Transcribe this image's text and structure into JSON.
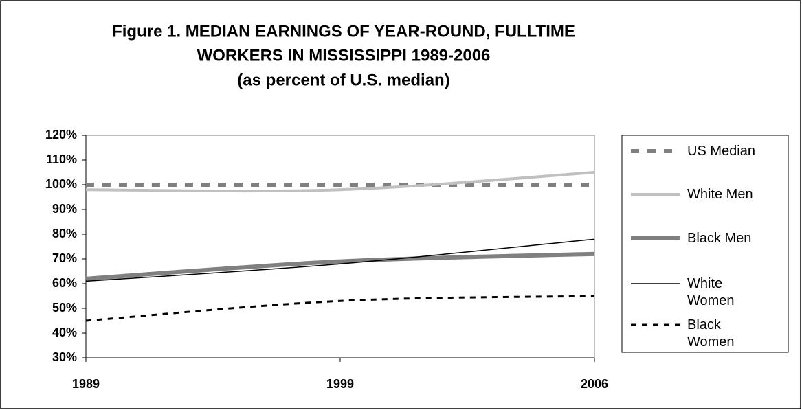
{
  "chart_data": {
    "type": "line",
    "title": [
      "Figure 1. MEDIAN EARNINGS OF YEAR-ROUND, FULLTIME",
      "WORKERS IN MISSISSIPPI 1989-2006"
    ],
    "subtitle": "(as percent of U.S. median)",
    "categories": [
      "1989",
      "1999",
      "2006"
    ],
    "series": [
      {
        "name": "US Median",
        "color": "#808080",
        "values": [
          100,
          100,
          100
        ]
      },
      {
        "name": "White Men",
        "color": "#c0c0c0",
        "values": [
          98,
          98,
          105
        ]
      },
      {
        "name": "Black Men",
        "color": "#808080",
        "values": [
          62,
          69,
          72
        ]
      },
      {
        "name": "White Women",
        "color": "#000000",
        "values": [
          61,
          68,
          78
        ]
      },
      {
        "name": "Black Women",
        "color": "#000000",
        "values": [
          45,
          53,
          55
        ]
      }
    ],
    "ylim": [
      30,
      120
    ],
    "yticks": [
      {
        "value": 30,
        "label": "30%"
      },
      {
        "value": 40,
        "label": "40%"
      },
      {
        "value": 50,
        "label": "50%"
      },
      {
        "value": 60,
        "label": "60%"
      },
      {
        "value": 70,
        "label": "70%"
      },
      {
        "value": 80,
        "label": "80%"
      },
      {
        "value": 90,
        "label": "90%"
      },
      {
        "value": 100,
        "label": "100%"
      },
      {
        "value": 110,
        "label": "110%"
      },
      {
        "value": 120,
        "label": "120%"
      }
    ],
    "grid": false,
    "legend": "right"
  }
}
